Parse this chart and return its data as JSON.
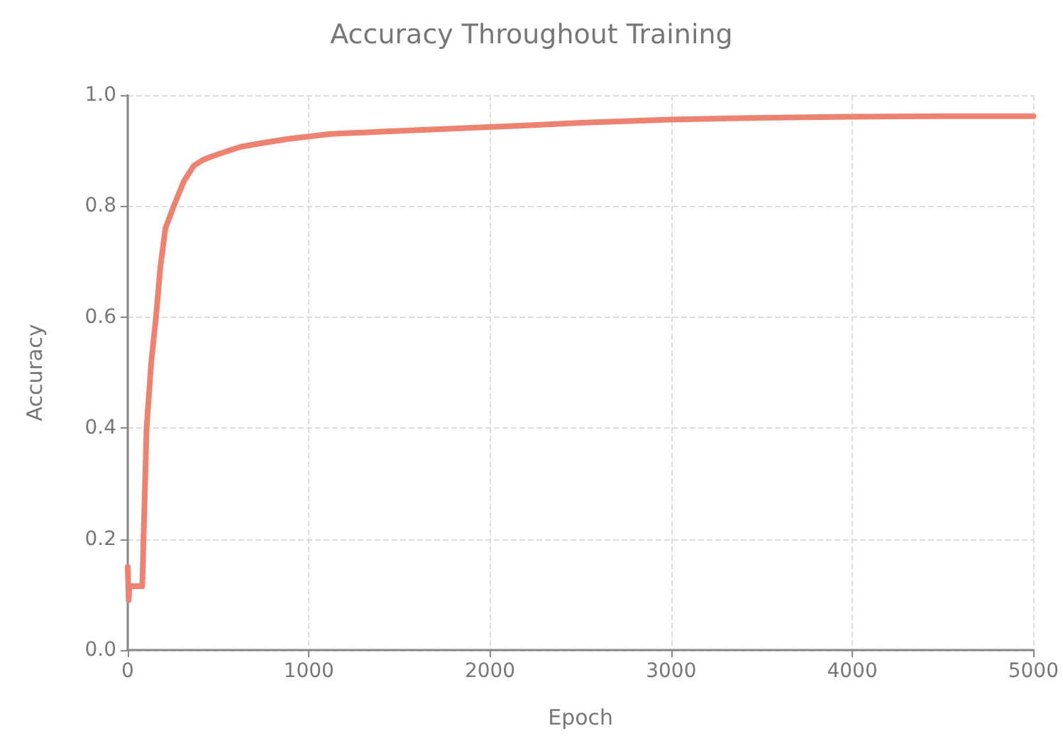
{
  "chart_data": {
    "type": "line",
    "title": "Accuracy Throughout Training",
    "xlabel": "Epoch",
    "ylabel": "Accuracy",
    "series": [
      {
        "color": "#ee8270",
        "x": [
          0,
          5,
          10,
          80,
          104,
          130,
          156,
          180,
          208,
          260,
          310,
          365,
          420,
          469,
          540,
          625,
          750,
          885,
          1120,
          1400,
          1745,
          2110,
          2500,
          2995,
          3500,
          3985,
          4500,
          5000
        ],
        "values": [
          0.15,
          0.09,
          0.115,
          0.115,
          0.4,
          0.52,
          0.6,
          0.69,
          0.76,
          0.805,
          0.845,
          0.873,
          0.884,
          0.89,
          0.898,
          0.907,
          0.914,
          0.921,
          0.93,
          0.934,
          0.939,
          0.944,
          0.95,
          0.956,
          0.959,
          0.961,
          0.962,
          0.962
        ]
      }
    ],
    "xlim": [
      0,
      5000
    ],
    "xticks": [
      0,
      1000,
      2000,
      3000,
      4000,
      5000
    ],
    "ylim": [
      0,
      1
    ],
    "yticks": [
      {
        "value": 0,
        "label": "0.0"
      },
      {
        "value": 0.2,
        "label": "0.2"
      },
      {
        "value": 0.4,
        "label": "0.4"
      },
      {
        "value": 0.6,
        "label": "0.6"
      },
      {
        "value": 0.8,
        "label": "0.8"
      },
      {
        "value": 1,
        "label": "1.0"
      }
    ],
    "grid": true,
    "marker": "none",
    "line_style": "solid"
  }
}
